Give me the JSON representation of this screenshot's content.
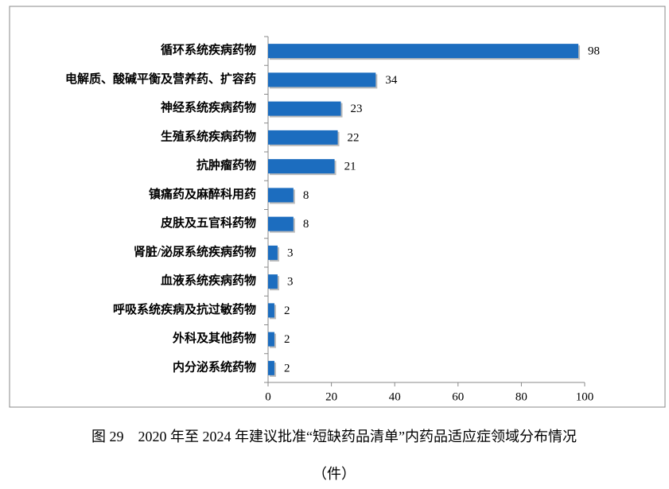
{
  "chart_data": {
    "type": "hbar",
    "title": "图 29　2020 年至 2024 年建议批准“短缺药品清单”内药品适应症领域分布情况",
    "subtitle": "（件）",
    "categories": [
      "循环系统疾病药物",
      "电解质、酸碱平衡及营养药、扩容药",
      "神经系统疾病药物",
      "生殖系统疾病药物",
      "抗肿瘤药物",
      "镇痛药及麻醉科用药",
      "皮肤及五官科药物",
      "肾脏/泌尿系统疾病药物",
      "血液系统疾病药物",
      "呼吸系统疾病及抗过敏药物",
      "外科及其他药物",
      "内分泌系统药物"
    ],
    "values": [
      98,
      34,
      23,
      22,
      21,
      8,
      8,
      3,
      3,
      2,
      2,
      2
    ],
    "color": "#1c6dbf",
    "xlim": [
      0,
      100
    ],
    "xticks": [
      0,
      20,
      40,
      60,
      80,
      100
    ],
    "grid": false
  }
}
